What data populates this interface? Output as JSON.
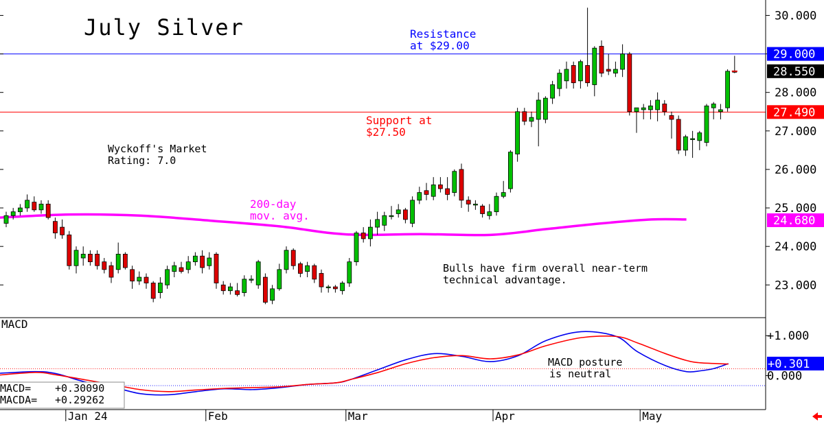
{
  "chart_data": [
    {
      "type": "candlestick",
      "title": "July Silver",
      "y_axis": {
        "ylim": [
          22.15,
          30.4
        ],
        "tick_labels": [
          "30.000",
          "29.000",
          "28.000",
          "27.000",
          "26.000",
          "25.000",
          "24.000",
          "23.000"
        ],
        "ticks": [
          30,
          29,
          28,
          27,
          26,
          25,
          24,
          23
        ]
      },
      "x_axis": {
        "months": [
          {
            "label": "Jan 24",
            "index": 9
          },
          {
            "label": "Feb",
            "index": 29
          },
          {
            "label": "Mar",
            "index": 49
          },
          {
            "label": "Apr",
            "index": 70
          },
          {
            "label": "May",
            "index": 91
          }
        ]
      },
      "resistance": {
        "value": 29.0,
        "label": "29.000",
        "color": "#0000ff",
        "text": [
          "Resistance",
          "at $29.00"
        ]
      },
      "support": {
        "value": 27.49,
        "label": "27.490",
        "color": "#ff0000",
        "text": [
          "Support at",
          "$27.50"
        ]
      },
      "last_price": {
        "value": 28.55,
        "label": "28.550"
      },
      "ma200": {
        "name_lines": [
          "200-day",
          "mov. avg."
        ],
        "color": "#ff00ff",
        "last_label": "24.680",
        "points": [
          [
            0,
            24.75
          ],
          [
            10,
            24.83
          ],
          [
            20,
            24.8
          ],
          [
            30,
            24.67
          ],
          [
            40,
            24.52
          ],
          [
            47,
            24.35
          ],
          [
            52,
            24.3
          ],
          [
            60,
            24.32
          ],
          [
            70,
            24.3
          ],
          [
            78,
            24.45
          ],
          [
            86,
            24.6
          ],
          [
            93,
            24.7
          ],
          [
            98,
            24.7
          ]
        ]
      },
      "rating_lines": [
        "Wyckoff's Market",
        "Rating: 7.0"
      ],
      "comment_lines": [
        "Bulls have firm overall near-term",
        "technical advantage."
      ],
      "candles": [
        [
          0,
          24.6,
          24.9,
          24.5,
          24.8
        ],
        [
          1,
          24.8,
          25.0,
          24.7,
          24.9
        ],
        [
          2,
          24.9,
          25.1,
          24.8,
          25.0
        ],
        [
          3,
          25.0,
          25.35,
          24.9,
          25.2
        ],
        [
          4,
          25.15,
          25.3,
          24.9,
          24.95
        ],
        [
          5,
          24.95,
          25.2,
          24.85,
          25.1
        ],
        [
          6,
          25.1,
          25.2,
          24.7,
          24.75
        ],
        [
          7,
          24.65,
          24.75,
          24.2,
          24.35
        ],
        [
          8,
          24.5,
          24.7,
          24.2,
          24.3
        ],
        [
          9,
          24.3,
          24.4,
          23.4,
          23.5
        ],
        [
          10,
          23.5,
          24.0,
          23.3,
          23.9
        ],
        [
          11,
          23.7,
          24.0,
          23.5,
          23.8
        ],
        [
          12,
          23.8,
          23.9,
          23.5,
          23.6
        ],
        [
          13,
          23.8,
          23.9,
          23.4,
          23.5
        ],
        [
          14,
          23.6,
          23.7,
          23.3,
          23.4
        ],
        [
          15,
          23.5,
          23.6,
          23.05,
          23.2
        ],
        [
          16,
          23.4,
          24.1,
          23.3,
          23.8
        ],
        [
          17,
          23.8,
          23.85,
          23.4,
          23.45
        ],
        [
          18,
          23.4,
          23.5,
          22.9,
          23.1
        ],
        [
          19,
          23.1,
          23.35,
          23.0,
          23.2
        ],
        [
          20,
          23.2,
          23.3,
          22.9,
          23.05
        ],
        [
          21,
          23.05,
          23.1,
          22.55,
          22.65
        ],
        [
          22,
          22.8,
          23.2,
          22.65,
          23.05
        ],
        [
          23,
          23.0,
          23.5,
          22.9,
          23.4
        ],
        [
          24,
          23.35,
          23.6,
          23.2,
          23.5
        ],
        [
          25,
          23.45,
          23.6,
          23.3,
          23.35
        ],
        [
          26,
          23.4,
          23.75,
          23.3,
          23.6
        ],
        [
          27,
          23.6,
          23.85,
          23.5,
          23.75
        ],
        [
          28,
          23.75,
          23.9,
          23.3,
          23.45
        ],
        [
          29,
          23.5,
          23.85,
          23.4,
          23.7
        ],
        [
          30,
          23.8,
          23.85,
          22.9,
          23.05
        ],
        [
          31,
          23.0,
          23.1,
          22.75,
          22.85
        ],
        [
          32,
          22.85,
          23.05,
          22.75,
          22.95
        ],
        [
          33,
          22.85,
          23.05,
          22.7,
          22.75
        ],
        [
          34,
          22.8,
          23.25,
          22.7,
          23.15
        ],
        [
          35,
          23.15,
          23.25,
          23.05,
          23.15
        ],
        [
          36,
          23.0,
          23.65,
          22.9,
          23.6
        ],
        [
          37,
          23.2,
          23.3,
          22.5,
          22.55
        ],
        [
          38,
          22.6,
          23.0,
          22.5,
          22.9
        ],
        [
          39,
          22.9,
          23.55,
          22.85,
          23.4
        ],
        [
          40,
          23.4,
          24.0,
          23.3,
          23.9
        ],
        [
          41,
          23.9,
          23.95,
          23.4,
          23.5
        ],
        [
          42,
          23.55,
          23.6,
          23.2,
          23.3
        ],
        [
          43,
          23.35,
          23.6,
          23.2,
          23.5
        ],
        [
          44,
          23.5,
          23.55,
          23.05,
          23.15
        ],
        [
          45,
          23.3,
          23.4,
          22.8,
          22.95
        ],
        [
          46,
          22.95,
          23.0,
          22.8,
          22.95
        ],
        [
          47,
          22.95,
          23.0,
          22.8,
          22.9
        ],
        [
          48,
          22.85,
          23.1,
          22.75,
          23.05
        ],
        [
          49,
          23.05,
          23.7,
          22.95,
          23.6
        ],
        [
          50,
          23.6,
          24.4,
          23.5,
          24.35
        ],
        [
          51,
          24.35,
          24.5,
          24.1,
          24.2
        ],
        [
          52,
          24.2,
          24.7,
          24.0,
          24.5
        ],
        [
          53,
          24.5,
          24.9,
          24.3,
          24.7
        ],
        [
          54,
          24.55,
          24.9,
          24.4,
          24.8
        ],
        [
          55,
          24.8,
          25.05,
          24.7,
          24.8
        ],
        [
          56,
          24.85,
          25.1,
          24.75,
          24.95
        ],
        [
          57,
          24.95,
          25.0,
          24.6,
          24.7
        ],
        [
          58,
          24.6,
          25.3,
          24.5,
          25.2
        ],
        [
          59,
          25.2,
          25.55,
          25.1,
          25.4
        ],
        [
          60,
          25.45,
          25.65,
          25.2,
          25.35
        ],
        [
          61,
          25.3,
          25.8,
          25.2,
          25.6
        ],
        [
          62,
          25.6,
          25.8,
          25.4,
          25.5
        ],
        [
          63,
          25.5,
          25.8,
          25.2,
          25.35
        ],
        [
          64,
          25.4,
          26.0,
          25.3,
          25.95
        ],
        [
          65,
          26.0,
          26.15,
          25.0,
          25.2
        ],
        [
          66,
          25.2,
          25.3,
          24.9,
          25.1
        ],
        [
          67,
          25.1,
          25.2,
          24.95,
          25.1
        ],
        [
          68,
          25.05,
          25.1,
          24.75,
          24.85
        ],
        [
          69,
          24.8,
          25.1,
          24.7,
          24.9
        ],
        [
          70,
          24.9,
          25.4,
          24.8,
          25.3
        ],
        [
          71,
          25.3,
          25.7,
          25.25,
          25.4
        ],
        [
          72,
          25.5,
          26.5,
          25.4,
          26.45
        ],
        [
          73,
          26.4,
          27.6,
          26.2,
          27.5
        ],
        [
          74,
          27.5,
          27.6,
          27.15,
          27.25
        ],
        [
          75,
          27.25,
          27.5,
          27.1,
          27.35
        ],
        [
          76,
          27.3,
          28.0,
          26.6,
          27.8
        ],
        [
          77,
          27.3,
          27.9,
          27.2,
          27.85
        ],
        [
          78,
          27.85,
          28.3,
          27.7,
          28.2
        ],
        [
          79,
          28.1,
          28.6,
          27.9,
          28.5
        ],
        [
          80,
          28.3,
          28.8,
          28.1,
          28.6
        ],
        [
          81,
          28.7,
          28.8,
          28.1,
          28.25
        ],
        [
          82,
          28.3,
          28.85,
          28.1,
          28.8
        ],
        [
          83,
          28.7,
          30.2,
          28.15,
          28.25
        ],
        [
          84,
          28.2,
          29.2,
          27.9,
          29.15
        ],
        [
          85,
          29.2,
          29.35,
          28.4,
          28.5
        ],
        [
          86,
          28.6,
          29.0,
          28.45,
          28.55
        ],
        [
          87,
          28.5,
          28.8,
          28.4,
          28.6
        ],
        [
          88,
          28.6,
          29.25,
          28.4,
          29.0
        ],
        [
          89,
          29.0,
          29.05,
          27.4,
          27.5
        ],
        [
          90,
          27.5,
          27.6,
          26.95,
          27.6
        ],
        [
          91,
          27.55,
          27.7,
          27.3,
          27.6
        ],
        [
          92,
          27.55,
          27.8,
          27.3,
          27.65
        ],
        [
          93,
          27.55,
          28.0,
          27.25,
          27.8
        ],
        [
          94,
          27.7,
          27.8,
          27.4,
          27.5
        ],
        [
          95,
          27.4,
          27.5,
          26.8,
          27.3
        ],
        [
          96,
          27.3,
          27.4,
          26.4,
          26.5
        ],
        [
          97,
          26.5,
          26.9,
          26.35,
          26.85
        ],
        [
          98,
          26.8,
          27.0,
          26.3,
          26.8
        ],
        [
          99,
          26.75,
          27.0,
          26.5,
          26.95
        ],
        [
          100,
          26.7,
          27.7,
          26.6,
          27.65
        ],
        [
          101,
          27.6,
          27.75,
          27.3,
          27.7
        ],
        [
          102,
          27.5,
          27.7,
          27.3,
          27.55
        ],
        [
          103,
          27.6,
          28.6,
          27.5,
          28.55
        ],
        [
          104,
          28.55,
          28.95,
          28.5,
          28.55
        ]
      ]
    },
    {
      "type": "line",
      "title": "MACD",
      "y_axis": {
        "ylim": [
          -0.85,
          1.45
        ],
        "ticks": [
          1,
          0
        ],
        "tick_labels": [
          "+1.000",
          "0.000"
        ]
      },
      "zero_line_value": -0.25,
      "signal_ref_value": 0.17,
      "last_label": "+0.301",
      "annotation_lines": [
        "MACD posture",
        "is neutral"
      ],
      "series": [
        {
          "name": "MACD",
          "color": "#0000ee",
          "points": [
            [
              -1,
              0.05
            ],
            [
              5,
              0.1
            ],
            [
              8,
              0.05
            ],
            [
              12,
              -0.15
            ],
            [
              16,
              -0.28
            ],
            [
              20,
              -0.45
            ],
            [
              24,
              -0.48
            ],
            [
              28,
              -0.4
            ],
            [
              32,
              -0.33
            ],
            [
              36,
              -0.35
            ],
            [
              40,
              -0.3
            ],
            [
              44,
              -0.22
            ],
            [
              48,
              -0.18
            ],
            [
              50,
              -0.1
            ],
            [
              54,
              0.15
            ],
            [
              58,
              0.4
            ],
            [
              62,
              0.55
            ],
            [
              66,
              0.48
            ],
            [
              70,
              0.35
            ],
            [
              74,
              0.5
            ],
            [
              78,
              0.88
            ],
            [
              83,
              1.1
            ],
            [
              88,
              0.98
            ],
            [
              91,
              0.6
            ],
            [
              95,
              0.25
            ],
            [
              98,
              0.1
            ],
            [
              100,
              0.12
            ],
            [
              102,
              0.18
            ],
            [
              104,
              0.3
            ]
          ]
        },
        {
          "name": "MACDA",
          "color": "#ff0000",
          "points": [
            [
              -1,
              0.0
            ],
            [
              5,
              0.08
            ],
            [
              8,
              0.02
            ],
            [
              12,
              -0.1
            ],
            [
              16,
              -0.22
            ],
            [
              20,
              -0.35
            ],
            [
              24,
              -0.4
            ],
            [
              28,
              -0.36
            ],
            [
              32,
              -0.32
            ],
            [
              36,
              -0.3
            ],
            [
              40,
              -0.28
            ],
            [
              44,
              -0.22
            ],
            [
              48,
              -0.18
            ],
            [
              50,
              -0.1
            ],
            [
              54,
              0.08
            ],
            [
              58,
              0.3
            ],
            [
              62,
              0.45
            ],
            [
              66,
              0.5
            ],
            [
              70,
              0.42
            ],
            [
              74,
              0.52
            ],
            [
              78,
              0.75
            ],
            [
              83,
              0.95
            ],
            [
              88,
              0.98
            ],
            [
              91,
              0.82
            ],
            [
              95,
              0.55
            ],
            [
              98,
              0.38
            ],
            [
              100,
              0.32
            ],
            [
              104,
              0.29
            ]
          ]
        }
      ],
      "readouts": [
        {
          "label": "MACD=",
          "value": "+0.30090"
        },
        {
          "label": "MACDA=",
          "value": "+0.29262"
        }
      ]
    }
  ],
  "colors": {
    "up": "#00c000",
    "down": "#dd0000",
    "grid": "#000000"
  }
}
